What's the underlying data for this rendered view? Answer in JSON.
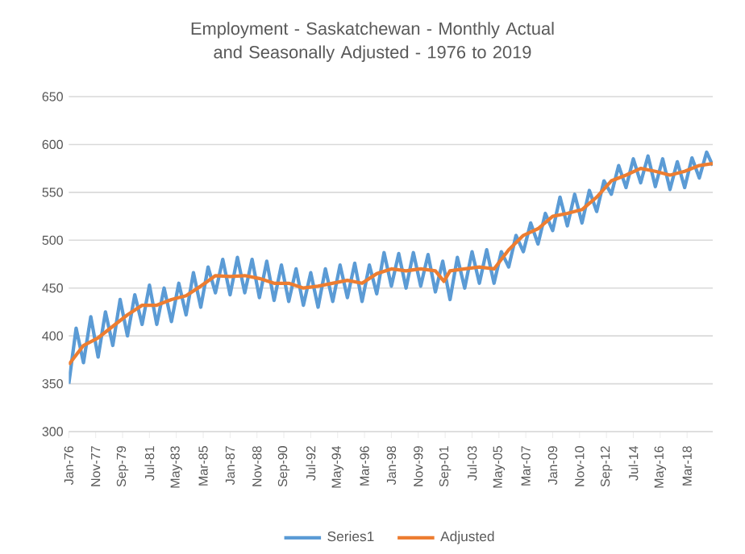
{
  "chart_data": {
    "type": "line",
    "title": "Employment - Saskatchewan - Monthly Actual and Seasonally Adjusted - 1976 to 2019",
    "xlim": [
      "1976-01",
      "2019-12"
    ],
    "xticks": [
      {
        "value": "1976-01",
        "label": "Jan-76"
      },
      {
        "value": "1977-11",
        "label": "Nov-77"
      },
      {
        "value": "1979-09",
        "label": "Sep-79"
      },
      {
        "value": "1981-07",
        "label": "Jul-81"
      },
      {
        "value": "1983-05",
        "label": "May-83"
      },
      {
        "value": "1985-03",
        "label": "Mar-85"
      },
      {
        "value": "1987-01",
        "label": "Jan-87"
      },
      {
        "value": "1988-11",
        "label": "Nov-88"
      },
      {
        "value": "1990-09",
        "label": "Sep-90"
      },
      {
        "value": "1992-07",
        "label": "Jul-92"
      },
      {
        "value": "1994-05",
        "label": "May-94"
      },
      {
        "value": "1996-03",
        "label": "Mar-96"
      },
      {
        "value": "1998-01",
        "label": "Jan-98"
      },
      {
        "value": "1999-11",
        "label": "Nov-99"
      },
      {
        "value": "2001-09",
        "label": "Sep-01"
      },
      {
        "value": "2003-07",
        "label": "Jul-03"
      },
      {
        "value": "2005-05",
        "label": "May-05"
      },
      {
        "value": "2007-03",
        "label": "Mar-07"
      },
      {
        "value": "2009-01",
        "label": "Jan-09"
      },
      {
        "value": "2010-11",
        "label": "Nov-10"
      },
      {
        "value": "2012-09",
        "label": "Sep-12"
      },
      {
        "value": "2014-07",
        "label": "Jul-14"
      },
      {
        "value": "2016-05",
        "label": "May-16"
      },
      {
        "value": "2018-03",
        "label": "Mar-18"
      }
    ],
    "ylim": [
      300,
      650
    ],
    "yticks": [
      300,
      350,
      400,
      450,
      500,
      550,
      600,
      650
    ],
    "grid": "y",
    "legend": "bottom",
    "marker": "none",
    "line_style": "solid",
    "series": [
      {
        "name": "Series1",
        "color": "#5b9bd5",
        "x": [
          "1976-01",
          "1976-07",
          "1977-01",
          "1977-07",
          "1978-01",
          "1978-07",
          "1979-01",
          "1979-07",
          "1980-01",
          "1980-07",
          "1981-01",
          "1981-07",
          "1982-01",
          "1982-07",
          "1983-01",
          "1983-07",
          "1984-01",
          "1984-07",
          "1985-01",
          "1985-07",
          "1986-01",
          "1986-07",
          "1987-01",
          "1987-07",
          "1988-01",
          "1988-07",
          "1989-01",
          "1989-07",
          "1990-01",
          "1990-07",
          "1991-01",
          "1991-07",
          "1992-01",
          "1992-07",
          "1993-01",
          "1993-07",
          "1994-01",
          "1994-07",
          "1995-01",
          "1995-07",
          "1996-01",
          "1996-07",
          "1997-01",
          "1997-07",
          "1998-01",
          "1998-07",
          "1999-01",
          "1999-07",
          "2000-01",
          "2000-07",
          "2001-01",
          "2001-07",
          "2002-01",
          "2002-07",
          "2003-01",
          "2003-07",
          "2004-01",
          "2004-07",
          "2005-01",
          "2005-07",
          "2006-01",
          "2006-07",
          "2007-01",
          "2007-07",
          "2008-01",
          "2008-07",
          "2009-01",
          "2009-07",
          "2010-01",
          "2010-07",
          "2011-01",
          "2011-07",
          "2012-01",
          "2012-07",
          "2013-01",
          "2013-07",
          "2014-01",
          "2014-07",
          "2015-01",
          "2015-07",
          "2016-01",
          "2016-07",
          "2017-01",
          "2017-07",
          "2018-01",
          "2018-07",
          "2019-01",
          "2019-07",
          "2019-12"
        ],
        "values": [
          350,
          408,
          372,
          420,
          378,
          425,
          390,
          438,
          400,
          443,
          412,
          453,
          412,
          450,
          415,
          455,
          422,
          466,
          430,
          472,
          445,
          480,
          443,
          482,
          445,
          480,
          440,
          478,
          437,
          474,
          436,
          470,
          432,
          466,
          430,
          470,
          436,
          474,
          440,
          476,
          436,
          474,
          444,
          487,
          452,
          486,
          450,
          487,
          452,
          485,
          446,
          478,
          438,
          482,
          450,
          488,
          455,
          490,
          455,
          488,
          472,
          505,
          488,
          518,
          496,
          528,
          510,
          545,
          515,
          548,
          518,
          552,
          530,
          562,
          548,
          578,
          555,
          585,
          560,
          588,
          556,
          585,
          553,
          582,
          555,
          586,
          565,
          592,
          578
        ]
      },
      {
        "name": "Adjusted",
        "color": "#ed7d31",
        "x": [
          "1976-01",
          "1977-01",
          "1978-01",
          "1979-01",
          "1980-01",
          "1981-01",
          "1982-01",
          "1983-01",
          "1984-01",
          "1985-01",
          "1986-01",
          "1987-01",
          "1988-01",
          "1989-01",
          "1990-01",
          "1991-01",
          "1992-01",
          "1993-01",
          "1994-01",
          "1995-01",
          "1996-01",
          "1997-01",
          "1998-01",
          "1999-01",
          "2000-01",
          "2001-01",
          "2001-08",
          "2002-01",
          "2003-01",
          "2004-01",
          "2005-01",
          "2006-01",
          "2007-01",
          "2008-01",
          "2009-01",
          "2010-01",
          "2011-01",
          "2012-01",
          "2013-01",
          "2014-01",
          "2015-01",
          "2016-01",
          "2017-01",
          "2018-01",
          "2019-01",
          "2019-12"
        ],
        "values": [
          370,
          390,
          398,
          410,
          422,
          432,
          432,
          438,
          442,
          452,
          463,
          462,
          463,
          460,
          455,
          455,
          450,
          452,
          455,
          458,
          455,
          465,
          470,
          468,
          470,
          468,
          457,
          468,
          470,
          472,
          470,
          490,
          505,
          512,
          525,
          528,
          532,
          545,
          562,
          568,
          575,
          572,
          568,
          572,
          578,
          580
        ]
      }
    ]
  }
}
